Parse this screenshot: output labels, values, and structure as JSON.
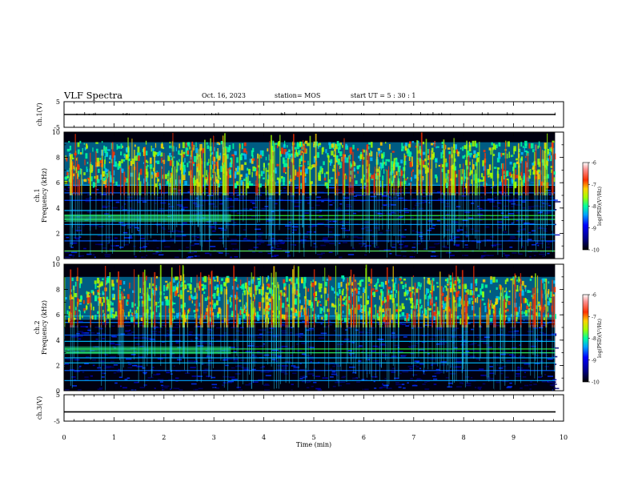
{
  "header": {
    "title": "VLF Spectra",
    "date": "Oct. 16, 2023",
    "station": "station= MOS",
    "start": "start  UT  =   5 : 30 : 1"
  },
  "chart_data": {
    "type": "heatmap",
    "xlabel": "Time  (min)",
    "xlim": [
      0,
      10
    ],
    "x_ticks": [
      "0",
      "1",
      "2",
      "3",
      "4",
      "5",
      "6",
      "7",
      "8",
      "9",
      "10"
    ],
    "panels": [
      {
        "name": "ch.1(V)",
        "kind": "waveform",
        "ylim": [
          -5,
          5
        ],
        "y_ticks": [
          "5",
          "-5"
        ],
        "level": 0
      },
      {
        "name": "ch.1",
        "ylabel": "Frequency  (kHz)",
        "kind": "spectrogram",
        "ylim": [
          0,
          10
        ],
        "y_ticks": [
          "0",
          "2",
          "4",
          "6",
          "8",
          "10"
        ],
        "colorbar": {
          "label": "log(PSD)(V²/Hz)",
          "range": [
            -10,
            -6
          ],
          "ticks": [
            "-6",
            "-7",
            "-8",
            "-9",
            "-10"
          ]
        }
      },
      {
        "name": "ch.2",
        "ylabel": "Frequency  (kHz)",
        "kind": "spectrogram",
        "ylim": [
          0,
          10
        ],
        "y_ticks": [
          "0",
          "2",
          "4",
          "6",
          "8",
          "10"
        ],
        "colorbar": {
          "label": "log(PSD)(V²/Hz)",
          "range": [
            -10,
            -6
          ],
          "ticks": [
            "-6",
            "-7",
            "-8",
            "-9",
            "-10"
          ]
        }
      },
      {
        "name": "ch.3(V)",
        "kind": "waveform",
        "ylim": [
          -5,
          5
        ],
        "y_ticks": [
          "5",
          "-5"
        ],
        "level": -1.5
      }
    ],
    "data_end_min": 9.83,
    "colormap": [
      "#000080",
      "#0000ff",
      "#00a0ff",
      "#00ffa0",
      "#a0ff00",
      "#ffd000",
      "#ff3000",
      "#ff9090",
      "#ffffff"
    ]
  }
}
